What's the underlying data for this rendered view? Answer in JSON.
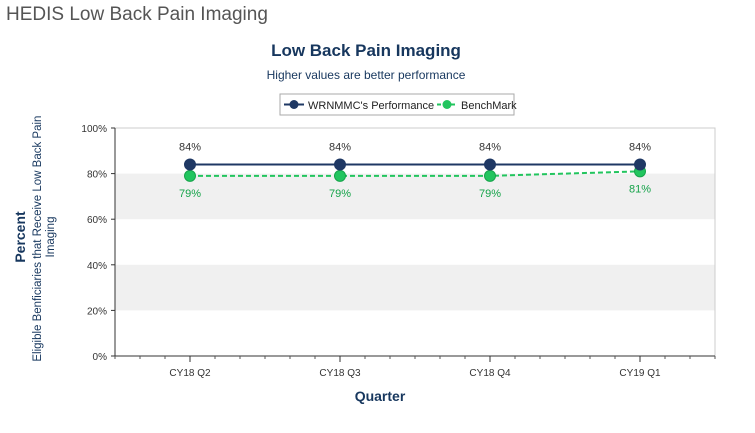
{
  "page": {
    "header": "HEDIS Low Back Pain Imaging"
  },
  "colors": {
    "series1": "#1f3864",
    "series2": "#22c55e",
    "title": "#17375e",
    "band": "#f0f0f0"
  },
  "chart_data": {
    "type": "line",
    "title": "Low Back Pain Imaging",
    "subtitle": "Higher values are better performance",
    "xlabel": "Quarter",
    "ylabel": "Percent",
    "ylabel_secondary": "Eligible Benficiaries that Receive Low Back Pain Imaging",
    "categories": [
      "CY18 Q2",
      "CY18 Q3",
      "CY18 Q4",
      "CY19 Q1"
    ],
    "ylim": [
      0,
      100
    ],
    "yticks": [
      0,
      20,
      40,
      60,
      80,
      100
    ],
    "ytick_labels": [
      "0%",
      "20%",
      "40%",
      "60%",
      "80%",
      "100%"
    ],
    "grid": "alternating horizontal bands",
    "legend_position": "top-center",
    "series": [
      {
        "name": "WRNMMC's Performance",
        "values": [
          84,
          84,
          84,
          84
        ],
        "labels": [
          "84%",
          "84%",
          "84%",
          "84%"
        ],
        "style": "solid"
      },
      {
        "name": "BenchMark",
        "values": [
          79,
          79,
          79,
          81
        ],
        "labels": [
          "79%",
          "79%",
          "79%",
          "81%"
        ],
        "style": "dashed"
      }
    ]
  }
}
